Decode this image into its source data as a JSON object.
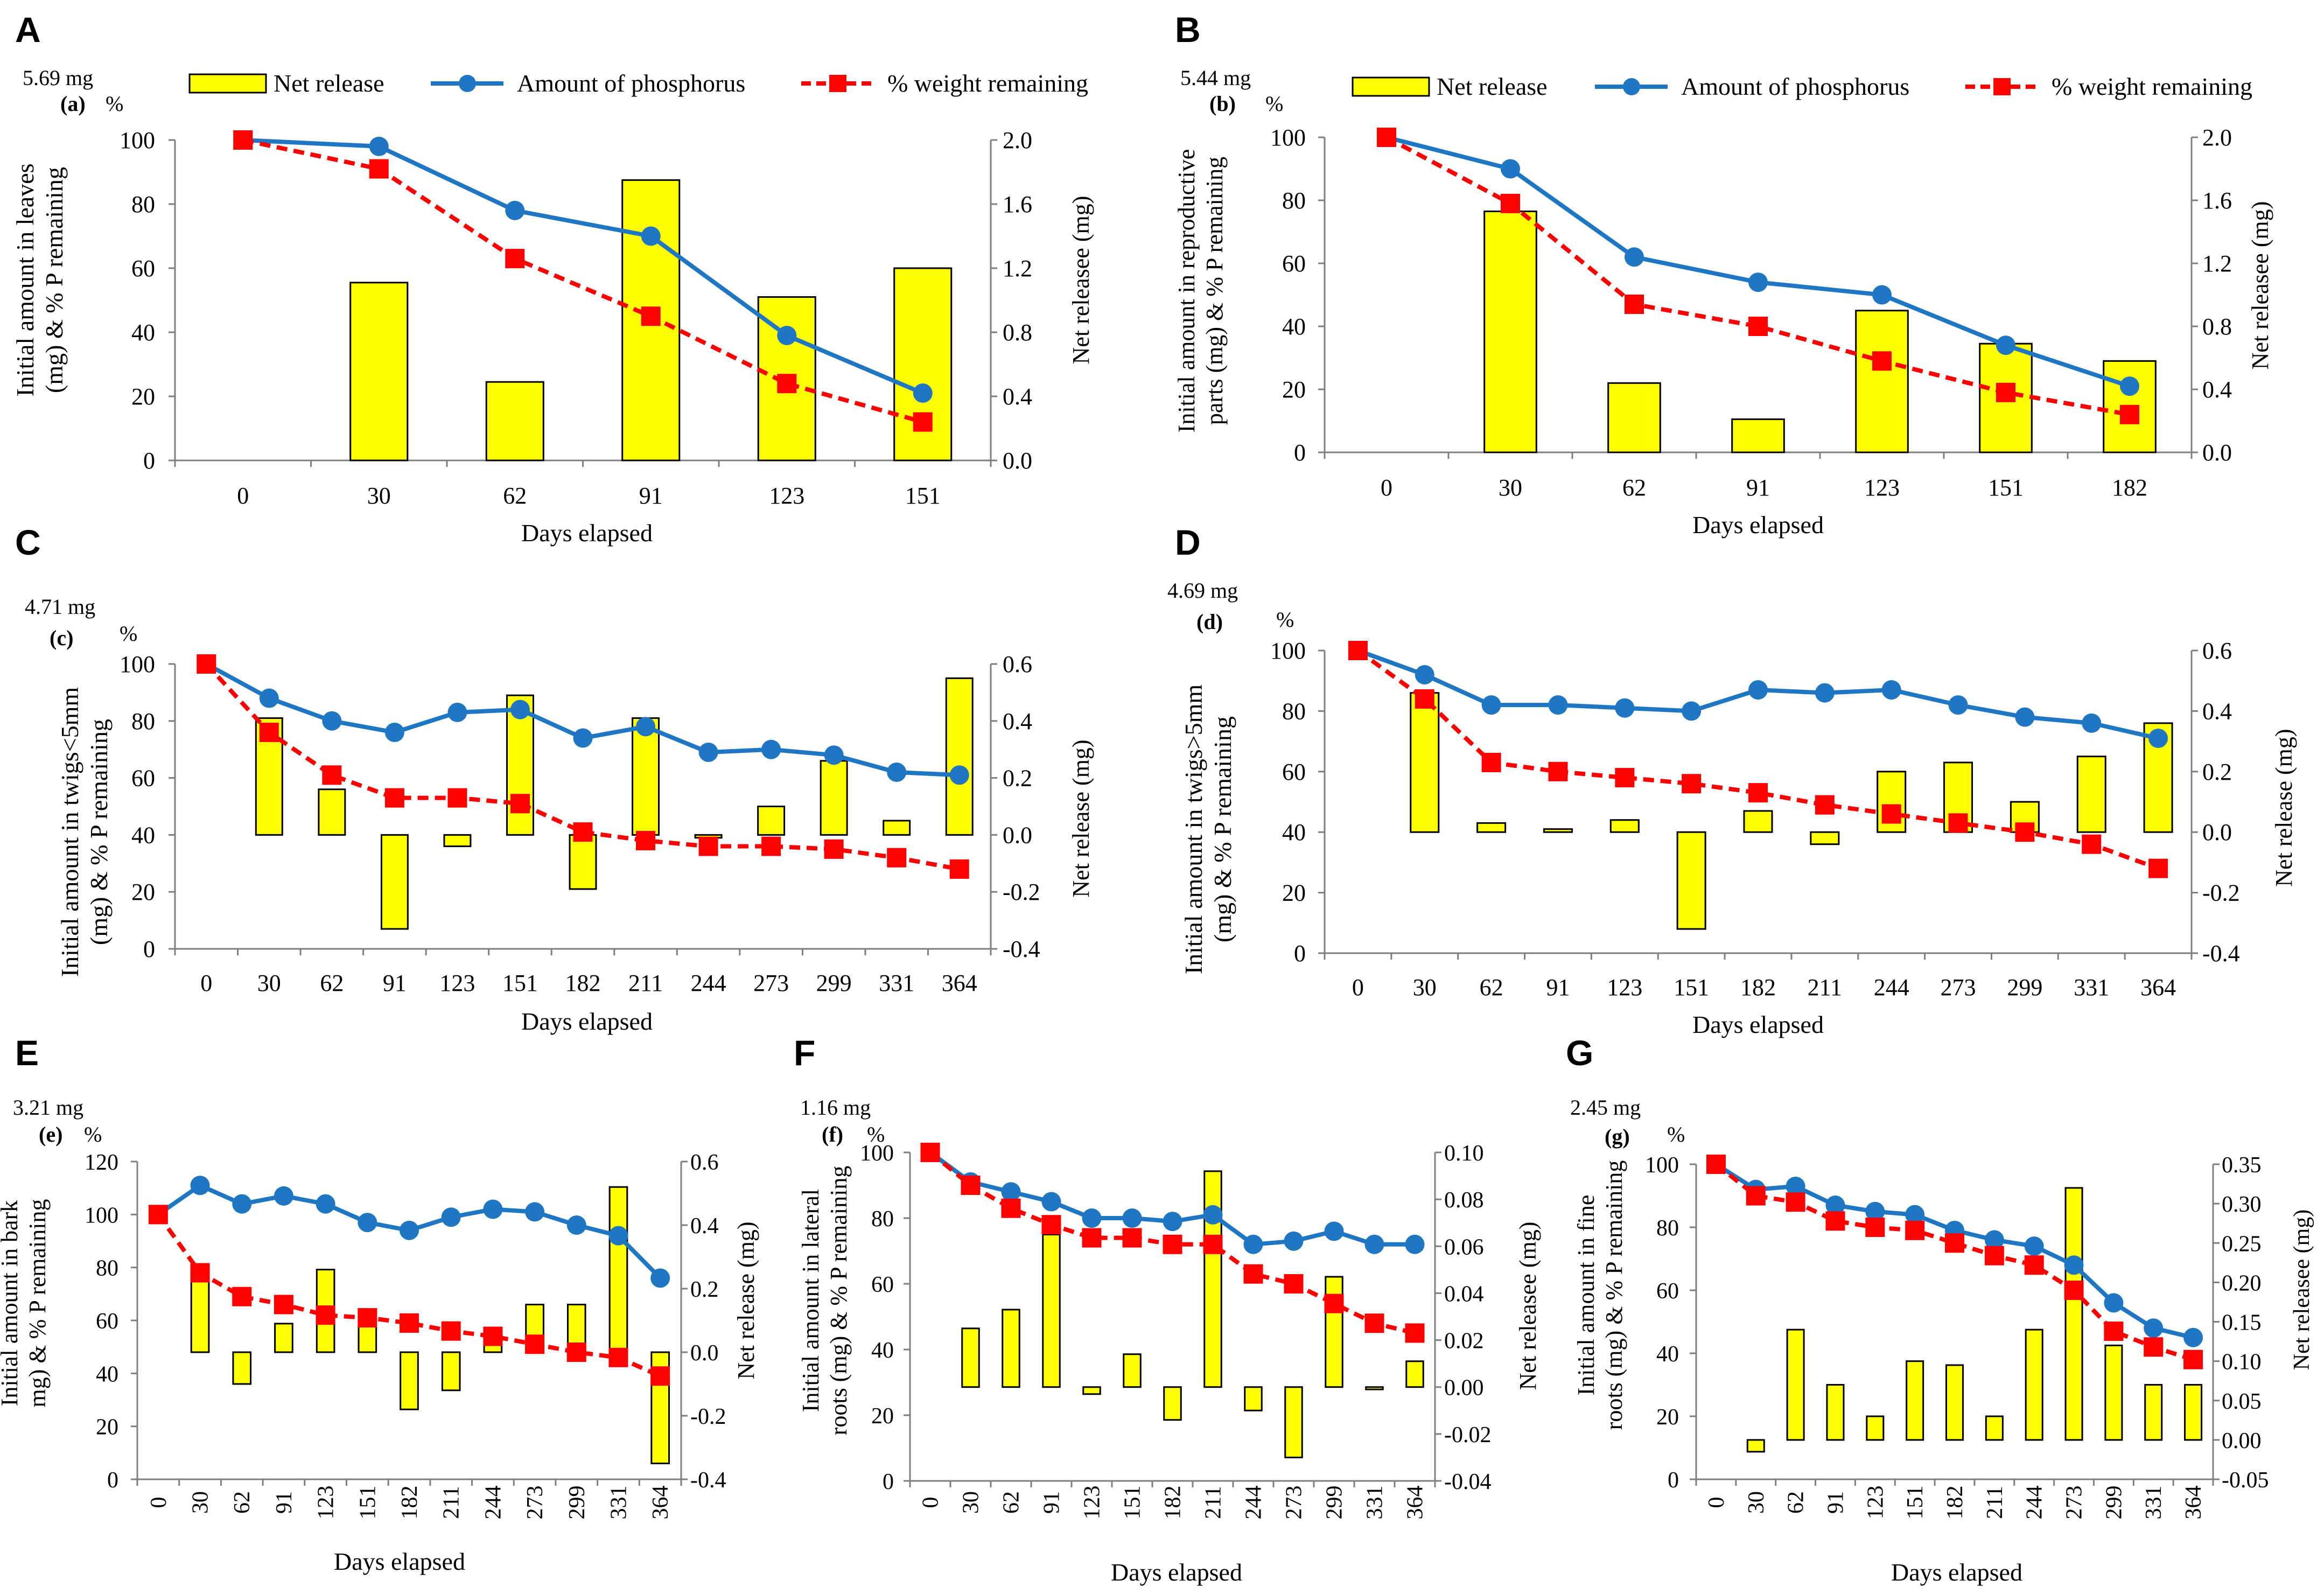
{
  "figure": {
    "legend": {
      "net_release": "Net release",
      "phosphorus": "Amount of phosphorus",
      "weight": "% weight remaining"
    },
    "colors": {
      "bar_fill": "#ffff00",
      "bar_stroke": "#000000",
      "phosphorus_line": "#1f77c4",
      "weight_line": "#ff0000",
      "axis": "#7f7f7f"
    }
  },
  "chart_data": [
    {
      "type": "bar+line",
      "panel_letter": "A",
      "sub_label": "(a)",
      "initial_amount": "5.69 mg",
      "pct_label": "%",
      "ylabel": [
        "Initial amount in leaves",
        "(mg) & % P remaining"
      ],
      "y2label": "Net releasee (mg)",
      "xlabel": "Days elapsed",
      "categories": [
        "0",
        "30",
        "62",
        "91",
        "123",
        "151"
      ],
      "ylim": [
        0,
        100
      ],
      "yticks": [
        0,
        20,
        40,
        60,
        80,
        100
      ],
      "ytick_labels": [
        "0",
        "20",
        "40",
        "60",
        "80",
        "100"
      ],
      "y2lim": [
        0,
        2
      ],
      "y2ticks": [
        0,
        0.4,
        0.8,
        1.2,
        1.6,
        2
      ],
      "y2tick_labels": [
        "0.0",
        "0.4",
        "0.8",
        "1.2",
        "1.6",
        "2.0"
      ],
      "series": [
        {
          "name": "Net release",
          "kind": "bar",
          "values": [
            null,
            1.11,
            0.49,
            1.75,
            1.02,
            1.2
          ]
        },
        {
          "name": "Amount of phosphorus",
          "kind": "line",
          "values": [
            100,
            98,
            78,
            70,
            39,
            21
          ]
        },
        {
          "name": "% weight remaining",
          "kind": "line",
          "values": [
            100,
            91,
            63,
            45,
            24,
            12
          ]
        }
      ]
    },
    {
      "type": "bar+line",
      "panel_letter": "B",
      "sub_label": "(b)",
      "initial_amount": "5.44 mg",
      "pct_label": "%",
      "ylabel": [
        "Initial amount in reproductive",
        "parts (mg) & % P remaining"
      ],
      "y2label": "Net releasee (mg)",
      "xlabel": "Days elapsed",
      "categories": [
        "0",
        "30",
        "62",
        "91",
        "123",
        "151",
        "182"
      ],
      "ylim": [
        0,
        100
      ],
      "yticks": [
        0,
        20,
        40,
        60,
        80,
        100
      ],
      "ytick_labels": [
        "0",
        "20",
        "40",
        "60",
        "80",
        "100"
      ],
      "y2lim": [
        0,
        2
      ],
      "y2ticks": [
        0,
        0.4,
        0.8,
        1.2,
        1.6,
        2
      ],
      "y2tick_labels": [
        "0.0",
        "0.4",
        "0.8",
        "1.2",
        "1.6",
        "2.0"
      ],
      "series": [
        {
          "name": "Net release",
          "kind": "bar",
          "values": [
            null,
            1.53,
            0.44,
            0.21,
            0.9,
            0.69,
            0.58
          ]
        },
        {
          "name": "Amount of phosphorus",
          "kind": "line",
          "values": [
            100,
            90,
            62,
            54,
            50,
            34,
            21
          ]
        },
        {
          "name": "% weight remaining",
          "kind": "line",
          "values": [
            100,
            79,
            47,
            40,
            29,
            19,
            12
          ]
        }
      ]
    },
    {
      "type": "bar+line",
      "panel_letter": "C",
      "sub_label": "(c)",
      "initial_amount": "4.71 mg",
      "pct_label": "%",
      "ylabel": [
        "Initial amount in twigs<5mm",
        "(mg) & % P remaining"
      ],
      "y2label": "Net release (mg)",
      "xlabel": "Days elapsed",
      "categories": [
        "0",
        "30",
        "62",
        "91",
        "123",
        "151",
        "182",
        "211",
        "244",
        "273",
        "299",
        "331",
        "364"
      ],
      "ylim": [
        0,
        100
      ],
      "yticks": [
        0,
        20,
        40,
        60,
        80,
        100
      ],
      "ytick_labels": [
        "0",
        "20",
        "40",
        "60",
        "80",
        "100"
      ],
      "y2lim": [
        -0.4,
        0.6
      ],
      "y2ticks": [
        -0.4,
        -0.2,
        0,
        0.2,
        0.4,
        0.6
      ],
      "y2tick_labels": [
        "-0.4",
        "-0.2",
        "0.0",
        "0.2",
        "0.4",
        "0.6"
      ],
      "series": [
        {
          "name": "Net release",
          "kind": "bar",
          "values": [
            null,
            0.41,
            0.16,
            -0.33,
            -0.04,
            0.49,
            -0.19,
            0.41,
            -0.01,
            0.1,
            0.26,
            0.05,
            0.55
          ]
        },
        {
          "name": "Amount of phosphorus",
          "kind": "line",
          "values": [
            100,
            88,
            80,
            76,
            83,
            84,
            74,
            78,
            69,
            70,
            68,
            62,
            61
          ]
        },
        {
          "name": "% weight remaining",
          "kind": "line",
          "values": [
            100,
            76,
            61,
            53,
            53,
            51,
            41,
            38,
            36,
            36,
            35,
            32,
            28
          ]
        }
      ]
    },
    {
      "type": "bar+line",
      "panel_letter": "D",
      "sub_label": "(d)",
      "initial_amount": "4.69 mg",
      "pct_label": "%",
      "ylabel": [
        "Initial amount in twigs>5mm",
        "(mg) & % P remaining"
      ],
      "y2label": "Net release (mg)",
      "xlabel": "Days elapsed",
      "categories": [
        "0",
        "30",
        "62",
        "91",
        "123",
        "151",
        "182",
        "211",
        "244",
        "273",
        "299",
        "331",
        "364"
      ],
      "ylim": [
        0,
        100
      ],
      "yticks": [
        0,
        20,
        40,
        60,
        80,
        100
      ],
      "ytick_labels": [
        "0",
        "20",
        "40",
        "60",
        "80",
        "100"
      ],
      "y2lim": [
        -0.4,
        0.6
      ],
      "y2ticks": [
        -0.4,
        -0.2,
        0,
        0.2,
        0.4,
        0.6
      ],
      "y2tick_labels": [
        "-0.4",
        "-0.2",
        "0.0",
        "0.2",
        "0.4",
        "0.6"
      ],
      "series": [
        {
          "name": "Net release",
          "kind": "bar",
          "values": [
            null,
            0.46,
            0.03,
            0.01,
            0.04,
            -0.32,
            0.07,
            -0.04,
            0.2,
            0.23,
            0.1,
            0.25,
            0.36
          ]
        },
        {
          "name": "Amount of phosphorus",
          "kind": "line",
          "values": [
            100,
            92,
            82,
            82,
            81,
            80,
            87,
            86,
            87,
            82,
            78,
            76,
            71
          ]
        },
        {
          "name": "% weight remaining",
          "kind": "line",
          "values": [
            100,
            84,
            63,
            60,
            58,
            56,
            53,
            49,
            46,
            43,
            40,
            36,
            28
          ]
        }
      ]
    },
    {
      "type": "bar+line",
      "panel_letter": "E",
      "sub_label": "(e)",
      "initial_amount": "3.21 mg",
      "pct_label": "%",
      "ylabel": [
        "Initial amount in bark",
        "mg) & % P remaining"
      ],
      "y2label": "Net release (mg)",
      "xlabel": "Days elapsed",
      "categories": [
        "0",
        "30",
        "62",
        "91",
        "123",
        "151",
        "182",
        "211",
        "244",
        "273",
        "299",
        "331",
        "364"
      ],
      "ylim": [
        0,
        120
      ],
      "yticks": [
        0,
        20,
        40,
        60,
        80,
        100,
        120
      ],
      "ytick_labels": [
        "0",
        "20",
        "40",
        "60",
        "80",
        "100",
        "120"
      ],
      "y2lim": [
        -0.4,
        0.6
      ],
      "y2ticks": [
        -0.4,
        -0.2,
        0,
        0.2,
        0.4,
        0.6
      ],
      "y2tick_labels": [
        "-0.4",
        "-0.2",
        "0.0",
        "0.2",
        "0.4",
        "0.6"
      ],
      "x_rotate": true,
      "series": [
        {
          "name": "Net release",
          "kind": "bar",
          "values": [
            null,
            0.26,
            -0.1,
            0.09,
            0.26,
            0.1,
            -0.18,
            -0.12,
            0.05,
            0.15,
            0.15,
            0.52,
            -0.35
          ]
        },
        {
          "name": "Amount of phosphorus",
          "kind": "line",
          "values": [
            100,
            111,
            104,
            107,
            104,
            97,
            94,
            99,
            102,
            101,
            96,
            92,
            76
          ]
        },
        {
          "name": "% weight remaining",
          "kind": "line",
          "values": [
            100,
            78,
            69,
            66,
            62,
            61,
            59,
            56,
            54,
            51,
            48,
            46,
            39
          ]
        }
      ]
    },
    {
      "type": "bar+line",
      "panel_letter": "F",
      "sub_label": "(f)",
      "initial_amount": "1.16 mg",
      "pct_label": "%",
      "ylabel": [
        "Initial amount in lateral",
        "roots (mg) & % P remaining"
      ],
      "y2label": "Net releasee (mg)",
      "xlabel": "Days elapsed",
      "categories": [
        "0",
        "30",
        "62",
        "91",
        "123",
        "151",
        "182",
        "211",
        "244",
        "273",
        "299",
        "331",
        "364"
      ],
      "ylim": [
        0,
        100
      ],
      "yticks": [
        0,
        20,
        40,
        60,
        80,
        100
      ],
      "ytick_labels": [
        "0",
        "20",
        "40",
        "60",
        "80",
        "100"
      ],
      "y2lim": [
        -0.04,
        0.1
      ],
      "y2ticks": [
        -0.04,
        -0.02,
        0,
        0.02,
        0.04,
        0.06,
        0.08,
        0.1
      ],
      "y2tick_labels": [
        "-0.04",
        "-0.02",
        "0.00",
        "0.02",
        "0.04",
        "0.06",
        "0.08",
        "0.10"
      ],
      "x_rotate": true,
      "series": [
        {
          "name": "Net release",
          "kind": "bar",
          "values": [
            null,
            0.025,
            0.033,
            0.065,
            -0.003,
            0.014,
            -0.014,
            0.092,
            -0.01,
            -0.03,
            0.047,
            -0.001,
            0.011
          ]
        },
        {
          "name": "Amount of phosphorus",
          "kind": "line",
          "values": [
            100,
            91,
            88,
            85,
            80,
            80,
            79,
            81,
            72,
            73,
            76,
            72,
            72
          ]
        },
        {
          "name": "% weight remaining",
          "kind": "line",
          "values": [
            100,
            90,
            83,
            78,
            74,
            74,
            72,
            72,
            63,
            60,
            54,
            48,
            45
          ]
        }
      ]
    },
    {
      "type": "bar+line",
      "panel_letter": "G",
      "sub_label": "(g)",
      "initial_amount": "2.45 mg",
      "pct_label": "%",
      "ylabel": [
        "Initial amount in fine",
        "roots (mg) & % P remaining"
      ],
      "y2label": "Net releasee (mg)",
      "xlabel": "Days elapsed",
      "categories": [
        "0",
        "30",
        "62",
        "91",
        "123",
        "151",
        "182",
        "211",
        "244",
        "273",
        "299",
        "331",
        "364"
      ],
      "ylim": [
        0,
        100
      ],
      "yticks": [
        0,
        20,
        40,
        60,
        80,
        100
      ],
      "ytick_labels": [
        "0",
        "20",
        "40",
        "60",
        "80",
        "100"
      ],
      "y2lim": [
        -0.05,
        0.35
      ],
      "y2ticks": [
        -0.05,
        0,
        0.05,
        0.1,
        0.15,
        0.2,
        0.25,
        0.3,
        0.35
      ],
      "y2tick_labels": [
        "-0.05",
        "0.00",
        "0.05",
        "0.10",
        "0.15",
        "0.20",
        "0.25",
        "0.30",
        "0.35"
      ],
      "x_rotate": true,
      "series": [
        {
          "name": "Net release",
          "kind": "bar",
          "values": [
            null,
            -0.015,
            0.14,
            0.07,
            0.03,
            0.1,
            0.095,
            0.03,
            0.14,
            0.32,
            0.12,
            0.07,
            0.07
          ]
        },
        {
          "name": "Amount of phosphorus",
          "kind": "line",
          "values": [
            100,
            92,
            93,
            87,
            85,
            84,
            79,
            76,
            74,
            68,
            56,
            48,
            45
          ]
        },
        {
          "name": "% weight remaining",
          "kind": "line",
          "values": [
            100,
            90,
            88,
            82,
            80,
            79,
            75,
            71,
            68,
            60,
            47,
            42,
            38
          ]
        }
      ]
    }
  ]
}
